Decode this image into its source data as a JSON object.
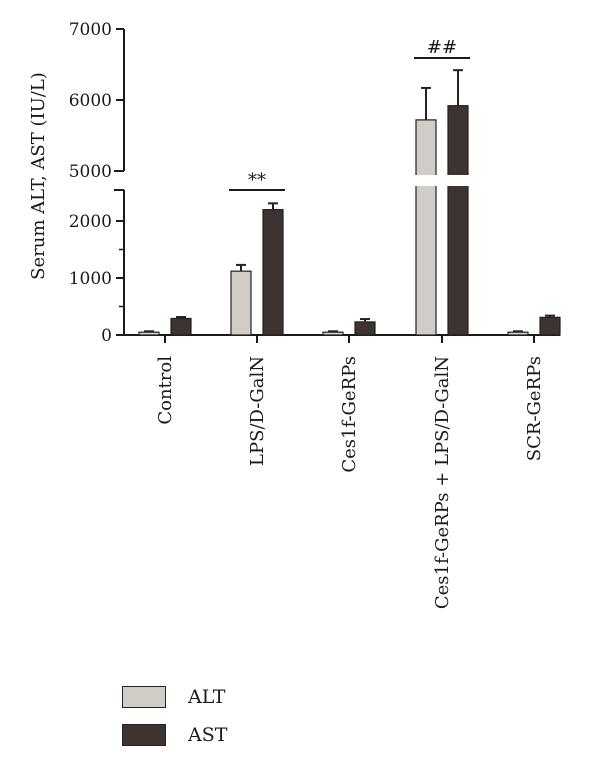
{
  "chart_data": {
    "type": "bar",
    "ylabel": "Serum ALT, AST (IU/L)",
    "categories": [
      "Control",
      "LPS/D-GalN",
      "Ces1f-GeRPs",
      "Ces1f-GeRPs + LPS/D-GalN",
      "SCR-GeRPs"
    ],
    "series": [
      {
        "name": "ALT",
        "color": "#d2ccc6",
        "values": [
          50,
          1120,
          50,
          5720,
          50
        ],
        "errors": [
          15,
          110,
          15,
          450,
          15
        ]
      },
      {
        "name": "AST",
        "color": "#3d3431",
        "values": [
          290,
          2200,
          230,
          5920,
          310
        ],
        "errors": [
          25,
          110,
          50,
          500,
          30
        ]
      }
    ],
    "y_axis": {
      "broken": true,
      "lower_segment": {
        "range": [
          0,
          2400
        ],
        "ticks": [
          "0",
          "1000",
          "2000"
        ]
      },
      "upper_segment": {
        "range": [
          5000,
          7000
        ],
        "ticks": [
          "5000",
          "6000",
          "7000"
        ]
      }
    },
    "annotations": [
      {
        "text": "**",
        "category": "LPS/D-GalN"
      },
      {
        "text": "##",
        "category": "Ces1f-GeRPs + LPS/D-GalN"
      }
    ],
    "legend": {
      "position": "bottom-left",
      "entries": [
        "ALT",
        "AST"
      ]
    }
  }
}
